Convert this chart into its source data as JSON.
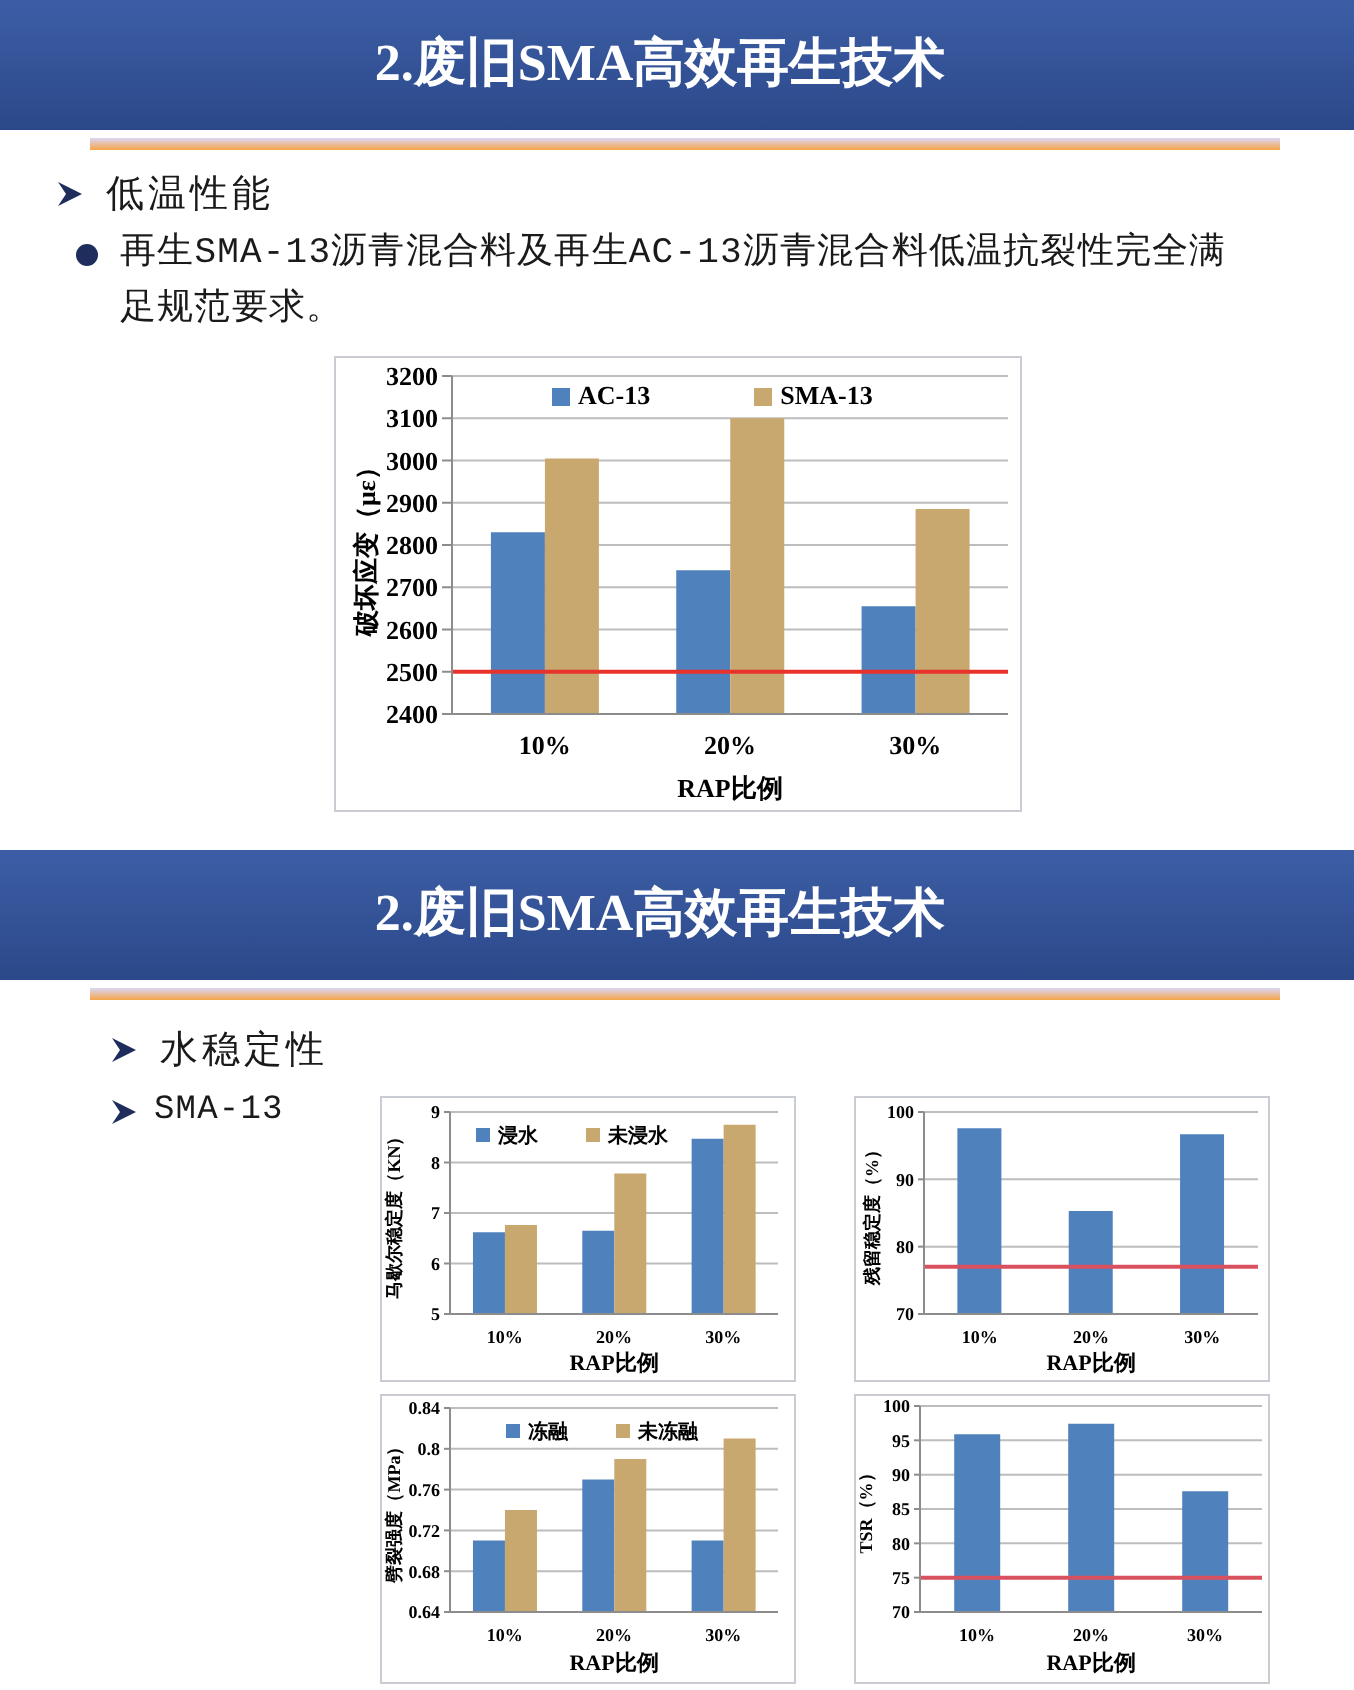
{
  "chart_data": [
    {
      "type": "bar",
      "title": "2.废旧SMA高效再生技术",
      "subtitle": "低温性能",
      "annotations": [
        "再生SMA-13沥青混合料及再生AC-13沥青混合料低温抗裂性完全满足规范要求。"
      ],
      "categories": [
        "10%",
        "20%",
        "30%"
      ],
      "series": [
        {
          "name": "AC-13",
          "color": "#4f81bd",
          "values": [
            2830,
            2740,
            2655
          ]
        },
        {
          "name": "SMA-13",
          "color": "#c8a86e",
          "values": [
            3005,
            3100,
            2885
          ]
        }
      ],
      "xlabel": "RAP比例",
      "ylabel": "破坏应变（με）",
      "ylim": [
        2400,
        3200
      ],
      "yticks": [
        2400,
        2500,
        2600,
        2700,
        2800,
        2900,
        3000,
        3100,
        3200
      ],
      "grid": "y",
      "legend": "top",
      "ref_lines": [
        {
          "axis": "y",
          "value": 2500,
          "color": "#e8322c"
        }
      ]
    },
    {
      "type": "bar",
      "title": "2.废旧SMA高效再生技术",
      "subtitle": "水稳定性",
      "annotations": [
        "SMA-13"
      ],
      "categories": [
        "10%",
        "20%",
        "30%"
      ],
      "series": [
        {
          "name": "浸水",
          "color": "#4f81bd",
          "values": [
            6.62,
            6.65,
            8.47
          ]
        },
        {
          "name": "未浸水",
          "color": "#c8a86e",
          "values": [
            6.76,
            7.78,
            8.75
          ]
        }
      ],
      "xlabel": "RAP比例",
      "ylabel": "马歇尔稳定度（KN）",
      "ylim": [
        5,
        9
      ],
      "yticks": [
        5,
        6,
        7,
        8,
        9
      ],
      "grid": "y",
      "legend": "top"
    },
    {
      "type": "bar",
      "categories": [
        "10%",
        "20%",
        "30%"
      ],
      "values": [
        97.6,
        85.3,
        96.7
      ],
      "color": "#4f81bd",
      "xlabel": "RAP比例",
      "ylabel": "残留稳定度（%）",
      "ylim": [
        70,
        100
      ],
      "yticks": [
        70,
        80,
        90,
        100
      ],
      "grid": "y",
      "ref_lines": [
        {
          "axis": "y",
          "value": 77,
          "color": "#d9505f"
        }
      ]
    },
    {
      "type": "bar",
      "categories": [
        "10%",
        "20%",
        "30%"
      ],
      "series": [
        {
          "name": "冻融",
          "color": "#4f81bd",
          "values": [
            0.71,
            0.77,
            0.71
          ]
        },
        {
          "name": "未冻融",
          "color": "#c8a86e",
          "values": [
            0.74,
            0.79,
            0.81
          ]
        }
      ],
      "xlabel": "RAP比例",
      "ylabel": "劈裂强度（MPa）",
      "ylim": [
        0.64,
        0.84
      ],
      "yticks": [
        0.64,
        0.68,
        0.72,
        0.76,
        0.8,
        0.84
      ],
      "grid": "y",
      "legend": "top"
    },
    {
      "type": "bar",
      "categories": [
        "10%",
        "20%",
        "30%"
      ],
      "values": [
        95.9,
        97.4,
        87.6
      ],
      "color": "#4f81bd",
      "xlabel": "RAP比例",
      "ylabel": "TSR（%）",
      "ylim": [
        70,
        100
      ],
      "yticks": [
        70,
        75,
        80,
        85,
        90,
        95,
        100
      ],
      "grid": "y",
      "ref_lines": [
        {
          "axis": "y",
          "value": 75,
          "color": "#d9505f"
        }
      ]
    }
  ]
}
